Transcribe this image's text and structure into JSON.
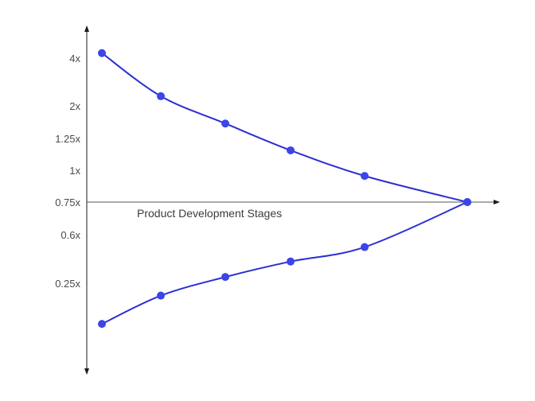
{
  "chart_data": {
    "type": "line",
    "title": "",
    "xlabel": "Product Development Stages",
    "ylabel": "",
    "y_ticks": [
      "4x",
      "2x",
      "1.25x",
      "1x",
      "0.75x",
      "0.6x",
      "0.25x"
    ],
    "x": [
      0,
      1,
      2,
      3,
      4,
      5
    ],
    "series": [
      {
        "values": [
          4.3,
          2.3,
          1.55,
          1.15,
          0.95,
          0.75
        ]
      },
      {
        "values": [
          0.12,
          0.2,
          0.28,
          0.37,
          0.48,
          0.75
        ]
      }
    ],
    "grid": false,
    "legend": "none",
    "colors": {
      "line": "#2b2fd0",
      "marker": "#3b45e8",
      "axis": "#1a1a1a",
      "text": "#4a4a4a"
    }
  }
}
